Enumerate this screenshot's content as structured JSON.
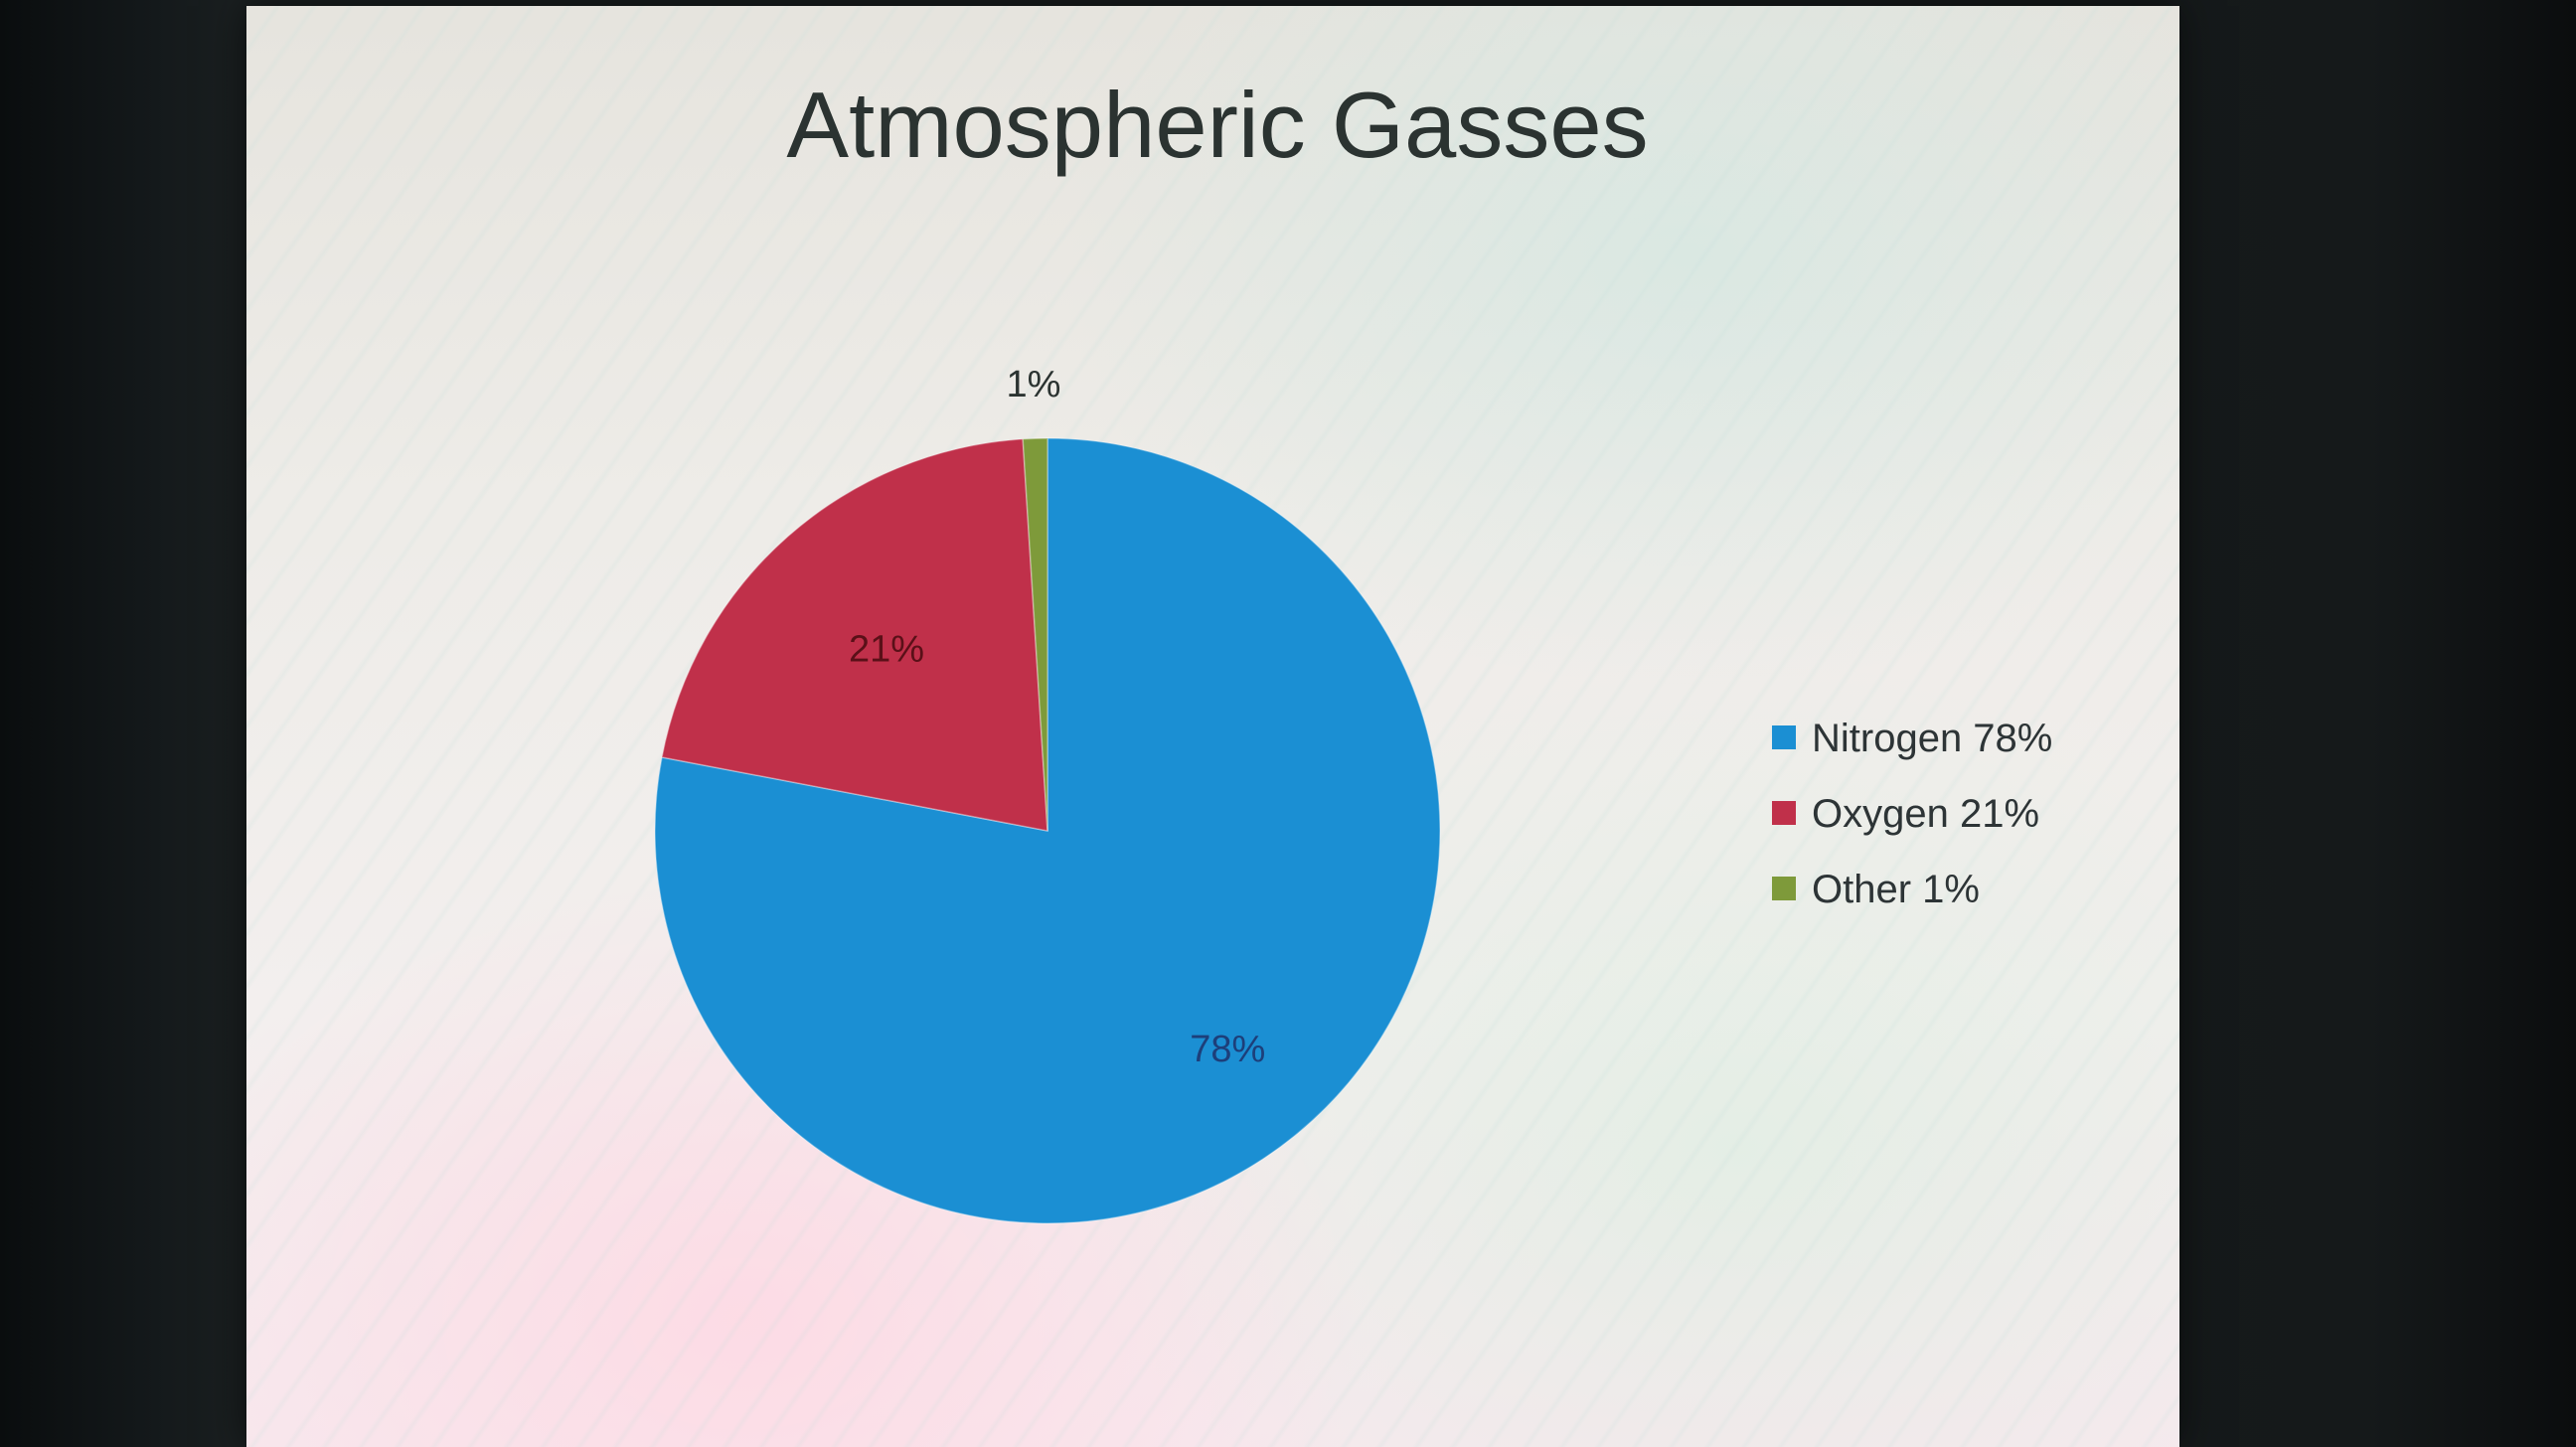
{
  "chart_data": {
    "type": "pie",
    "title": "Atmospheric Gasses",
    "categories": [
      "Nitrogen",
      "Oxygen",
      "Other"
    ],
    "values": [
      78,
      21,
      1
    ],
    "colors": [
      "#1b8fd3",
      "#c0304a",
      "#7e9a3a"
    ],
    "data_labels": [
      "78%",
      "21%",
      "1%"
    ],
    "legend_entries": [
      "Nitrogen 78%",
      "Oxygen 21%",
      "Other 1%"
    ],
    "legend_position": "right",
    "label_colors": [
      "#1d3f7a",
      "#5a1018",
      "#2b3331"
    ]
  }
}
